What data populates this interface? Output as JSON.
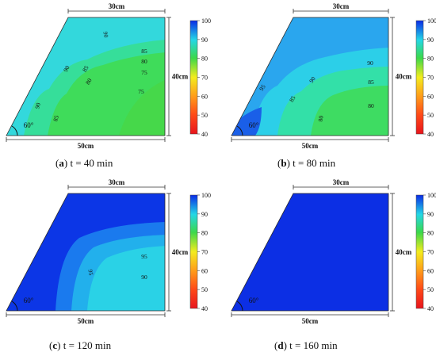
{
  "colors": {
    "c40": "#e8141c",
    "c50": "#ff4a18",
    "c60": "#ff9b1a",
    "c70": "#f3ec1e",
    "c80": "#3cd84a",
    "c85": "#33e08c",
    "c90": "#24d7e6",
    "c95": "#1ba7ef",
    "c100": "#0a2be6"
  },
  "colorbar": {
    "ticks": [
      "100",
      "90",
      "80",
      "70",
      "60",
      "50",
      "40"
    ]
  },
  "dims": {
    "top": "30cm",
    "right": "40cm",
    "bottom": "50cm",
    "angle": "60°"
  },
  "panels": [
    {
      "id": "a",
      "caption": {
        "letter": "a",
        "text": " t = 40 min"
      },
      "labels": [
        "90",
        "90",
        "85",
        "80",
        "85",
        "80",
        "75",
        "75",
        "90",
        "85"
      ]
    },
    {
      "id": "b",
      "caption": {
        "letter": "b",
        "text": " t = 80 min"
      },
      "labels": [
        "95",
        "90",
        "90",
        "85",
        "85",
        "80",
        "80"
      ]
    },
    {
      "id": "c",
      "caption": {
        "letter": "c",
        "text": " t = 120 min"
      },
      "labels": [
        "95",
        "95",
        "90"
      ]
    },
    {
      "id": "d",
      "caption": {
        "letter": "d",
        "text": " t = 160 min"
      },
      "labels": []
    }
  ]
}
